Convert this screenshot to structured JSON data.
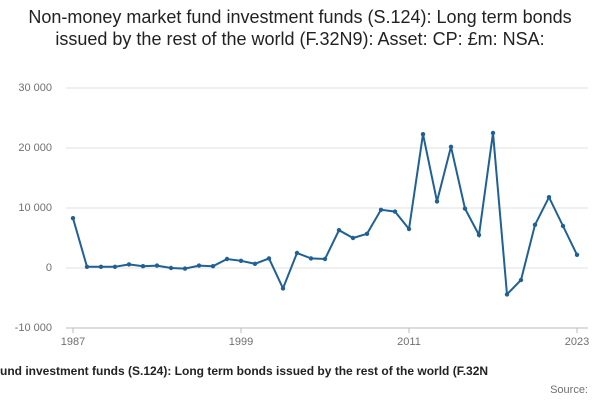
{
  "chart_data": {
    "type": "line",
    "title": "Non-money market fund investment funds (S.124): Long term bonds issued by the rest of the world (F.32N9): Asset: CP: £m: NSA:",
    "x_label": "und investment funds (S.124): Long term bonds issued by the rest of the world (F.32N",
    "source": "Source:",
    "x": [
      1987,
      1988,
      1989,
      1990,
      1991,
      1992,
      1993,
      1994,
      1995,
      1996,
      1997,
      1998,
      1999,
      2000,
      2001,
      2002,
      2003,
      2004,
      2005,
      2006,
      2007,
      2008,
      2009,
      2010,
      2011,
      2012,
      2013,
      2014,
      2015,
      2016,
      2017,
      2018,
      2019,
      2020,
      2021,
      2022,
      2023
    ],
    "series": [
      {
        "color": "#206095",
        "values": [
          8300,
          200,
          200,
          200,
          600,
          300,
          400,
          0,
          -100,
          400,
          300,
          1500,
          1200,
          700,
          1600,
          -3400,
          2500,
          1600,
          1500,
          6300,
          5000,
          5700,
          9700,
          9400,
          6500,
          22300,
          11100,
          20200,
          9900,
          5500,
          22500,
          -4400,
          -2000,
          7200,
          11800,
          7000,
          2200
        ]
      }
    ],
    "xlim": [
      1987,
      2023
    ],
    "xticks": [
      1987,
      1999,
      2011,
      2023
    ],
    "ylim": [
      -10000,
      30000
    ],
    "yticks": [
      {
        "value": -10000,
        "label": "-10 000"
      },
      0,
      {
        "value": 10000,
        "label": "10 000"
      },
      {
        "value": 20000,
        "label": "20 000"
      },
      {
        "value": 30000,
        "label": "30 000"
      }
    ],
    "grid": true
  }
}
